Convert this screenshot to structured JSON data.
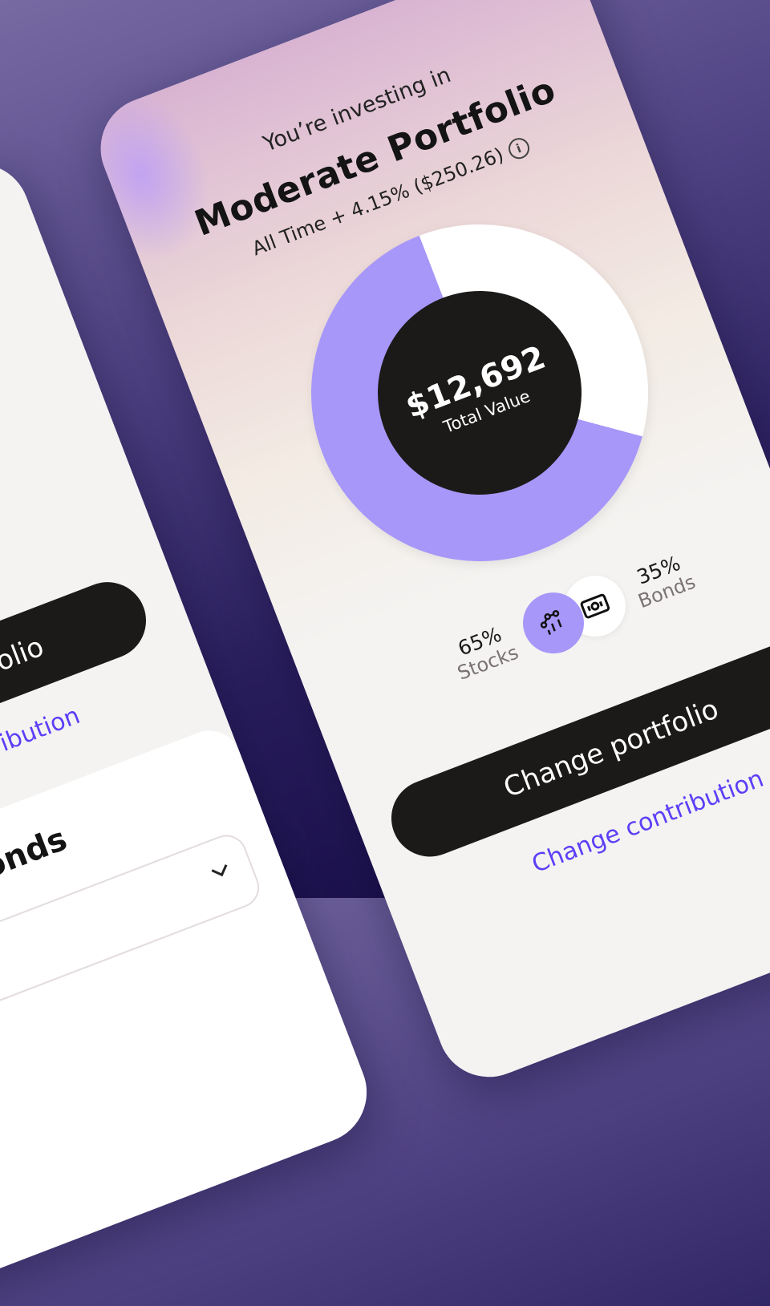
{
  "main_card": {
    "subtitle": "You’re investing in",
    "portfolio_name": "Moderate Portfolio",
    "performance": "All Time + 4.15% ($250.26)",
    "info_icon": "info-circle-icon",
    "total_value": "$12,692",
    "total_label": "Total Value",
    "allocation": [
      {
        "name": "Stocks",
        "percent_label": "65%",
        "percent": 65,
        "color": "#a797f9",
        "icon": "stocks-chart-icon"
      },
      {
        "name": "Bonds",
        "percent_label": "35%",
        "percent": 35,
        "color": "#ffffff",
        "icon": "banknote-icon"
      }
    ],
    "primary_button": "Change portfolio",
    "secondary_link": "Change contribution"
  },
  "left_card": {
    "primary_button": "Change portfolio",
    "secondary_link": "Change contribution",
    "section_title": "Bonds",
    "select_icon": "chevron-down-icon"
  },
  "colors": {
    "accent": "#a797f9",
    "link": "#5b3ff7",
    "dark": "#1b1a18"
  }
}
